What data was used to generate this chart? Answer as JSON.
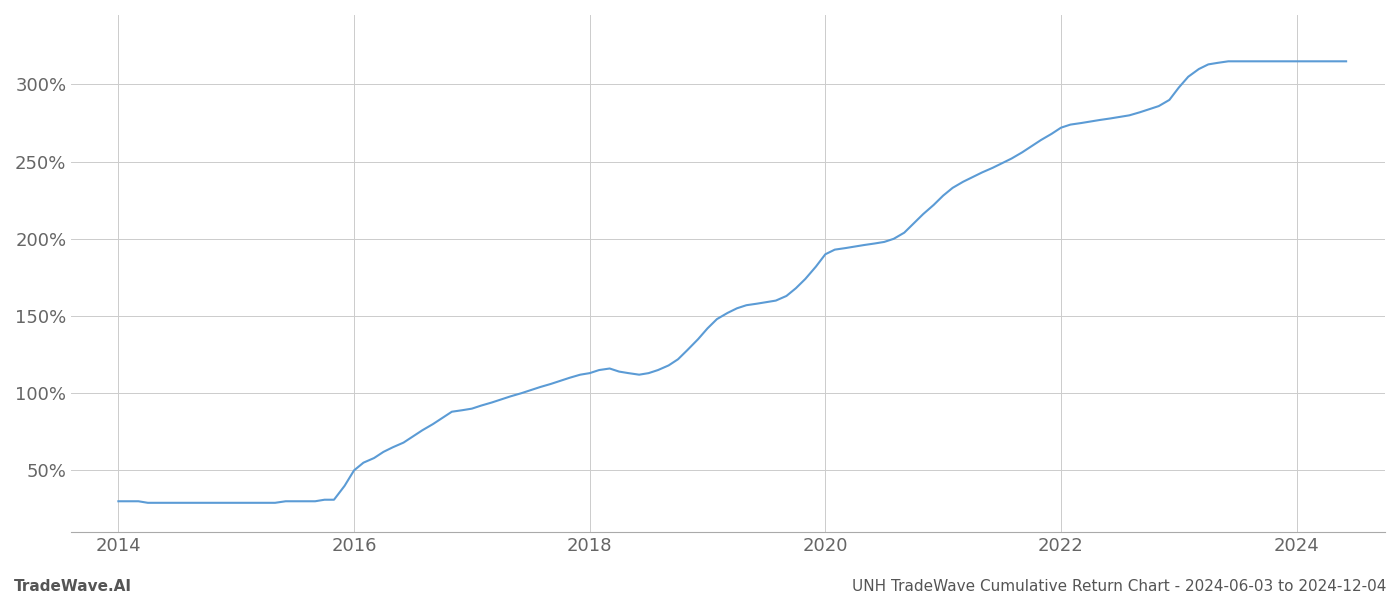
{
  "title_left": "TradeWave.AI",
  "title_right": "UNH TradeWave Cumulative Return Chart - 2024-06-03 to 2024-12-04",
  "line_color": "#5b9bd5",
  "line_width": 1.5,
  "background_color": "#ffffff",
  "grid_color": "#cccccc",
  "x_years": [
    2014.0,
    2014.08,
    2014.17,
    2014.25,
    2014.33,
    2014.42,
    2014.5,
    2014.58,
    2014.67,
    2014.75,
    2014.83,
    2014.92,
    2015.0,
    2015.08,
    2015.17,
    2015.25,
    2015.33,
    2015.42,
    2015.5,
    2015.58,
    2015.67,
    2015.75,
    2015.83,
    2015.92,
    2016.0,
    2016.08,
    2016.17,
    2016.25,
    2016.33,
    2016.42,
    2016.5,
    2016.58,
    2016.67,
    2016.75,
    2016.83,
    2016.92,
    2017.0,
    2017.08,
    2017.17,
    2017.25,
    2017.33,
    2017.42,
    2017.5,
    2017.58,
    2017.67,
    2017.75,
    2017.83,
    2017.92,
    2018.0,
    2018.08,
    2018.17,
    2018.25,
    2018.33,
    2018.42,
    2018.5,
    2018.58,
    2018.67,
    2018.75,
    2018.83,
    2018.92,
    2019.0,
    2019.08,
    2019.17,
    2019.25,
    2019.33,
    2019.42,
    2019.5,
    2019.58,
    2019.67,
    2019.75,
    2019.83,
    2019.92,
    2020.0,
    2020.08,
    2020.17,
    2020.25,
    2020.33,
    2020.42,
    2020.5,
    2020.58,
    2020.67,
    2020.75,
    2020.83,
    2020.92,
    2021.0,
    2021.08,
    2021.17,
    2021.25,
    2021.33,
    2021.42,
    2021.5,
    2021.58,
    2021.67,
    2021.75,
    2021.83,
    2021.92,
    2022.0,
    2022.08,
    2022.17,
    2022.25,
    2022.33,
    2022.42,
    2022.5,
    2022.58,
    2022.67,
    2022.75,
    2022.83,
    2022.92,
    2023.0,
    2023.08,
    2023.17,
    2023.25,
    2023.33,
    2023.42,
    2023.5,
    2023.58,
    2023.67,
    2023.75,
    2023.83,
    2023.92,
    2024.0,
    2024.08,
    2024.17,
    2024.25,
    2024.33,
    2024.42
  ],
  "y_values": [
    30,
    30,
    30,
    29,
    29,
    29,
    29,
    29,
    29,
    29,
    29,
    29,
    29,
    29,
    29,
    29,
    29,
    30,
    30,
    30,
    30,
    31,
    31,
    40,
    50,
    55,
    58,
    62,
    65,
    68,
    72,
    76,
    80,
    84,
    88,
    89,
    90,
    92,
    94,
    96,
    98,
    100,
    102,
    104,
    106,
    108,
    110,
    112,
    113,
    115,
    116,
    114,
    113,
    112,
    113,
    115,
    118,
    122,
    128,
    135,
    142,
    148,
    152,
    155,
    157,
    158,
    159,
    160,
    163,
    168,
    174,
    182,
    190,
    193,
    194,
    195,
    196,
    197,
    198,
    200,
    204,
    210,
    216,
    222,
    228,
    233,
    237,
    240,
    243,
    246,
    249,
    252,
    256,
    260,
    264,
    268,
    272,
    274,
    275,
    276,
    277,
    278,
    279,
    280,
    282,
    284,
    286,
    290,
    298,
    305,
    310,
    313,
    314,
    315,
    315,
    315,
    315,
    315,
    315,
    315,
    315,
    315,
    315,
    315,
    315,
    315
  ],
  "yticks": [
    50,
    100,
    150,
    200,
    250,
    300
  ],
  "ylim": [
    10,
    345
  ],
  "xlim": [
    2013.6,
    2024.75
  ],
  "xticks": [
    2014,
    2016,
    2018,
    2020,
    2022,
    2024
  ],
  "tick_fontsize": 13,
  "title_fontsize": 11
}
